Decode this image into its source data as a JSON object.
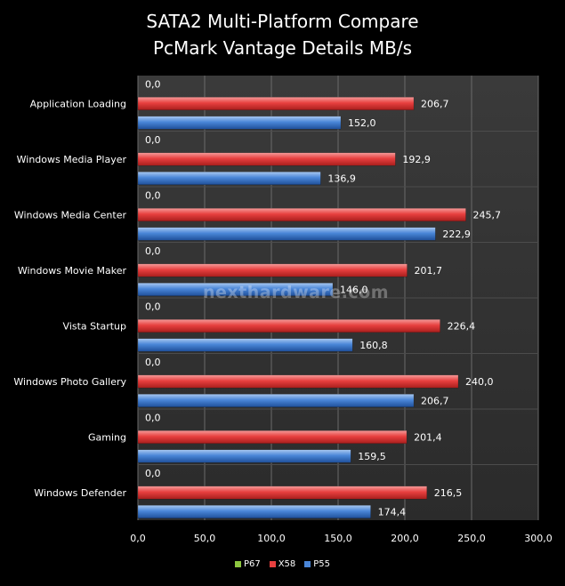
{
  "title_line1": "SATA2 Multi-Platform Compare",
  "title_line2": "PcMark Vantage Details MB/s",
  "watermark": "nexthardware.com",
  "chart_data": {
    "type": "bar",
    "orientation": "horizontal",
    "categories": [
      "Application Loading",
      "Windows Media Player",
      "Windows Media Center",
      "Windows Movie Maker",
      "Vista Startup",
      "Windows Photo Gallery",
      "Gaming",
      "Windows Defender"
    ],
    "series": [
      {
        "name": "P67",
        "color": "#8dc63f",
        "values": [
          0.0,
          0.0,
          0.0,
          0.0,
          0.0,
          0.0,
          0.0,
          0.0
        ],
        "labels": [
          "0,0",
          "0,0",
          "0,0",
          "0,0",
          "0,0",
          "0,0",
          "0,0",
          "0,0"
        ]
      },
      {
        "name": "X58",
        "color": "#e8403f",
        "values": [
          206.7,
          192.9,
          245.7,
          201.7,
          226.4,
          240.0,
          201.4,
          216.5
        ],
        "labels": [
          "206,7",
          "192,9",
          "245,7",
          "201,7",
          "226,4",
          "240,0",
          "201,4",
          "216,5"
        ]
      },
      {
        "name": "P55",
        "color": "#4a86d8",
        "values": [
          152.0,
          136.9,
          222.9,
          146.0,
          160.8,
          206.7,
          159.5,
          174.4
        ],
        "labels": [
          "152,0",
          "136,9",
          "222,9",
          "146,0",
          "160,8",
          "206,7",
          "159,5",
          "174,4"
        ]
      }
    ],
    "xlim": [
      0,
      300
    ],
    "ticks": [
      0,
      50,
      100,
      150,
      200,
      250,
      300
    ],
    "tick_labels": [
      "0,0",
      "50,0",
      "100,0",
      "150,0",
      "200,0",
      "250,0",
      "300,0"
    ],
    "grid": true,
    "legend": "bottom"
  }
}
